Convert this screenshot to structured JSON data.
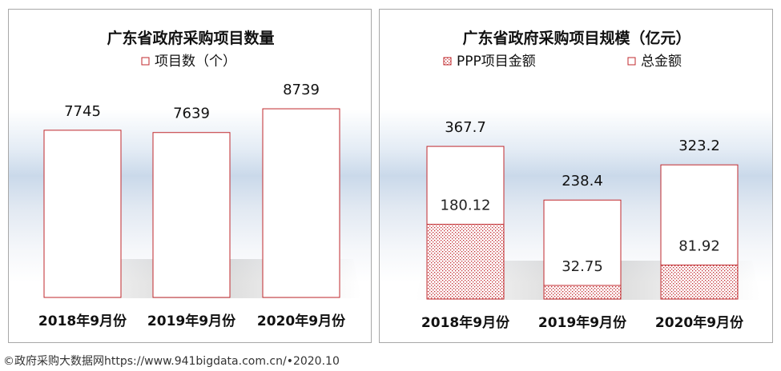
{
  "chart_data": [
    {
      "type": "bar",
      "title": "广东省政府采购项目数量",
      "categories": [
        "2018年9月份",
        "2019年9月份",
        "2020年9月份"
      ],
      "series": [
        {
          "name": "项目数（个）",
          "values": [
            7745,
            7639,
            8739
          ]
        }
      ],
      "ylim": [
        0,
        10000
      ],
      "legend": "top",
      "grid": false
    },
    {
      "type": "bar",
      "title": "广东省政府采购项目规模（亿元）",
      "categories": [
        "2018年9月份",
        "2019年9月份",
        "2020年9月份"
      ],
      "series": [
        {
          "name": "PPP项目金额",
          "values": [
            180.12,
            32.75,
            81.92
          ]
        },
        {
          "name": "总金额",
          "values": [
            367.7,
            238.4,
            323.2
          ]
        }
      ],
      "ylim": [
        0,
        520
      ],
      "legend": "top",
      "grid": false
    }
  ],
  "footer": {
    "credit": "©政府采购大数据网https://www.941bigdata.com.cn/•2020.10"
  },
  "colors": {
    "bar_border": "#c0282d",
    "hatch": "#c0282d",
    "text": "#111111",
    "panel_border": "#a8a8a8"
  }
}
